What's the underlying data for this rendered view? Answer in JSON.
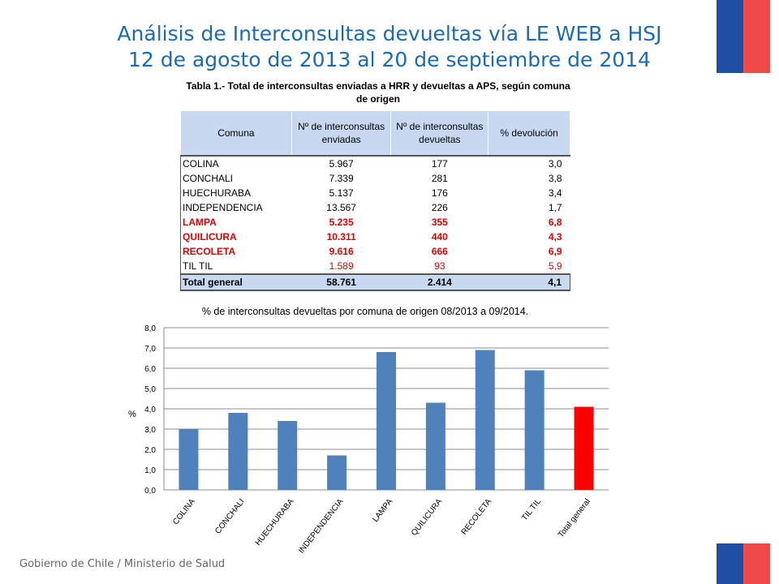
{
  "slide": {
    "title_line1": "Análisis de Interconsultas devueltas vía LE WEB a HSJ",
    "title_line2": "12 de agosto de 2013 al 20 de septiembre de 2014",
    "footer": "Gobierno de Chile / Ministerio de Salud"
  },
  "table": {
    "caption": "Tabla 1.- Total de interconsultas enviadas a HRR y devueltas a APS, según comuna de origen",
    "headers": [
      "Comuna",
      "Nº de interconsultas enviadas",
      "Nº de interconsultas devueltas",
      "% devolución"
    ],
    "rows": [
      {
        "comuna": "COLINA",
        "enviadas": "5.967",
        "devueltas": "177",
        "pct": "3,0"
      },
      {
        "comuna": "CONCHALI",
        "enviadas": "7.339",
        "devueltas": "281",
        "pct": "3,8"
      },
      {
        "comuna": "HUECHURABA",
        "enviadas": "5.137",
        "devueltas": "176",
        "pct": "3,4"
      },
      {
        "comuna": "INDEPENDENCIA",
        "enviadas": "13.567",
        "devueltas": "226",
        "pct": "1,7"
      },
      {
        "comuna": "LAMPA",
        "enviadas": "5.235",
        "devueltas": "355",
        "pct": "6,8"
      },
      {
        "comuna": "QUILICURA",
        "enviadas": "10.311",
        "devueltas": "440",
        "pct": "4,3"
      },
      {
        "comuna": "RECOLETA",
        "enviadas": "9.616",
        "devueltas": "666",
        "pct": "6,9"
      },
      {
        "comuna": "TIL TIL",
        "enviadas": "1.589",
        "devueltas": "93",
        "pct": "5,9"
      }
    ],
    "total": {
      "comuna": "Total general",
      "enviadas": "58.761",
      "devueltas": "2.414",
      "pct": "4,1"
    },
    "highlight_color": "#e00000",
    "header_bg": "#c6d9f1"
  },
  "chart_data": {
    "type": "bar",
    "title": "% de interconsultas devueltas  por comuna de origen  08/2013 a 09/2014.",
    "ylabel": "%",
    "xlabel": "",
    "categories": [
      "COLINA",
      "CONCHALI",
      "HUECHURABA",
      "INDEPENDENCIA",
      "LAMPA",
      "QUILICURA",
      "RECOLETA",
      "TIL TIL",
      "Total general"
    ],
    "values": [
      3.0,
      3.8,
      3.4,
      1.7,
      6.8,
      4.3,
      6.9,
      5.9,
      4.1
    ],
    "ylim": [
      0,
      8
    ],
    "yticks": [
      "0,0",
      "1,0",
      "2,0",
      "3,0",
      "4,0",
      "5,0",
      "6,0",
      "7,0",
      "8,0"
    ],
    "grid": true,
    "bar_color": "#4f81bd",
    "highlight_bar_color": "#ff0000",
    "highlight_index": 8
  }
}
